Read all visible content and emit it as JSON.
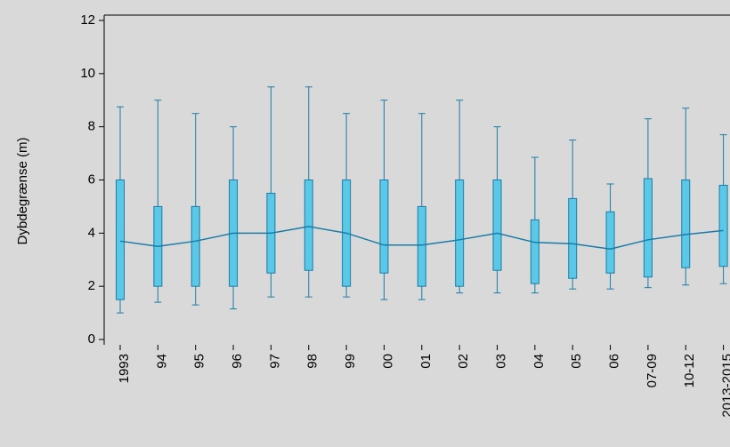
{
  "chart_data": {
    "type": "box",
    "y_label": "Dybdegrænse (m)",
    "categories": [
      "1993",
      "94",
      "95",
      "96",
      "97",
      "98",
      "99",
      "00",
      "01",
      "02",
      "03",
      "04",
      "05",
      "06",
      "07-09",
      "10-12",
      "2013-2015"
    ],
    "min": [
      1.0,
      1.4,
      1.3,
      1.15,
      1.6,
      1.6,
      1.6,
      1.5,
      1.5,
      1.75,
      1.75,
      1.75,
      1.9,
      1.9,
      1.95,
      2.05,
      2.1
    ],
    "q1": [
      1.5,
      2.0,
      2.0,
      2.0,
      2.5,
      2.6,
      2.0,
      2.5,
      2.0,
      2.0,
      2.6,
      2.1,
      2.3,
      2.5,
      2.35,
      2.7,
      2.75
    ],
    "median": [
      3.7,
      3.5,
      3.7,
      4.0,
      4.0,
      4.25,
      4.0,
      3.55,
      3.55,
      3.75,
      4.0,
      3.65,
      3.6,
      3.4,
      3.75,
      3.95,
      4.1
    ],
    "q3": [
      6.0,
      5.0,
      5.0,
      6.0,
      5.5,
      6.0,
      6.0,
      6.0,
      5.0,
      6.0,
      6.0,
      4.5,
      5.3,
      4.8,
      6.05,
      6.0,
      5.8
    ],
    "max": [
      8.75,
      9.0,
      8.5,
      8.0,
      9.5,
      9.5,
      8.5,
      9.0,
      8.5,
      9.0,
      8.0,
      6.85,
      7.5,
      5.85,
      8.3,
      8.7,
      7.7
    ],
    "box_color": "#5bc8e8",
    "line_color": "#1a7ca6",
    "ylim": [
      -0.2,
      12.2
    ],
    "yticks": [
      0,
      2,
      4,
      6,
      8,
      10,
      12
    ]
  }
}
